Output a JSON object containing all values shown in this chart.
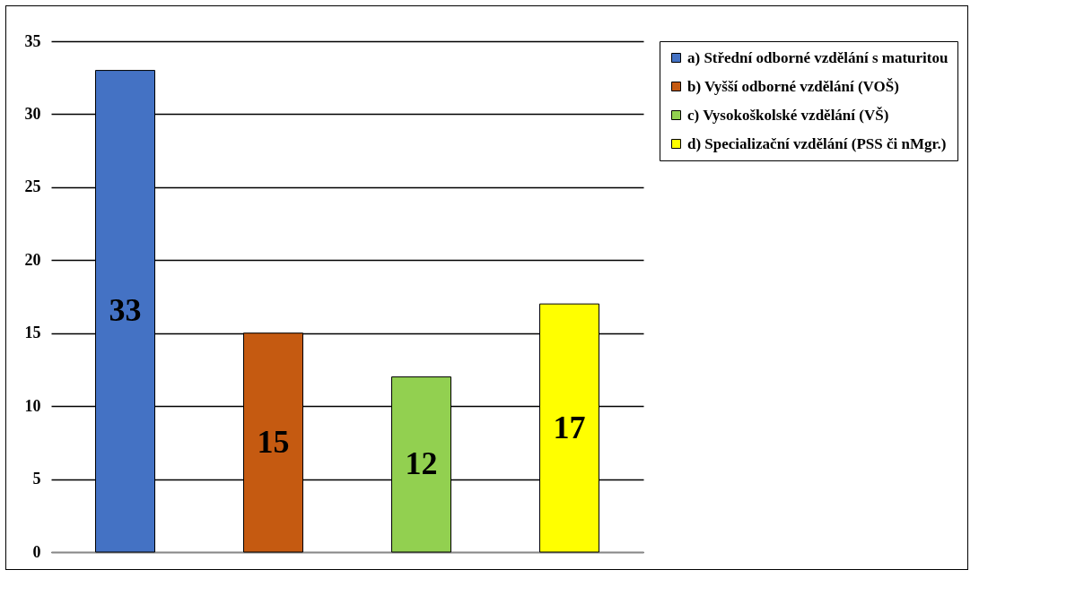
{
  "chart_data": {
    "type": "bar",
    "categories": [
      null
    ],
    "series": [
      {
        "name": "a) Střední odborné vzdělání s maturitou",
        "color": "#4472c4",
        "values": [
          33
        ]
      },
      {
        "name": "b) Vyšší odborné vzdělání (VOŠ)",
        "color": "#c55a11",
        "values": [
          15
        ]
      },
      {
        "name": "c) Vysokoškolské vzdělání (VŠ)",
        "color": "#92d050",
        "values": [
          12
        ]
      },
      {
        "name": "d) Specializační vzdělání (PSS či nMgr.)",
        "color": "#ffff00",
        "values": [
          17
        ]
      }
    ],
    "ylim": [
      0,
      35
    ],
    "yticks": [
      0,
      5,
      10,
      15,
      20,
      25,
      30,
      35
    ],
    "grid": "y",
    "legend": "right",
    "data_labels": true,
    "tick_labels": "y"
  }
}
